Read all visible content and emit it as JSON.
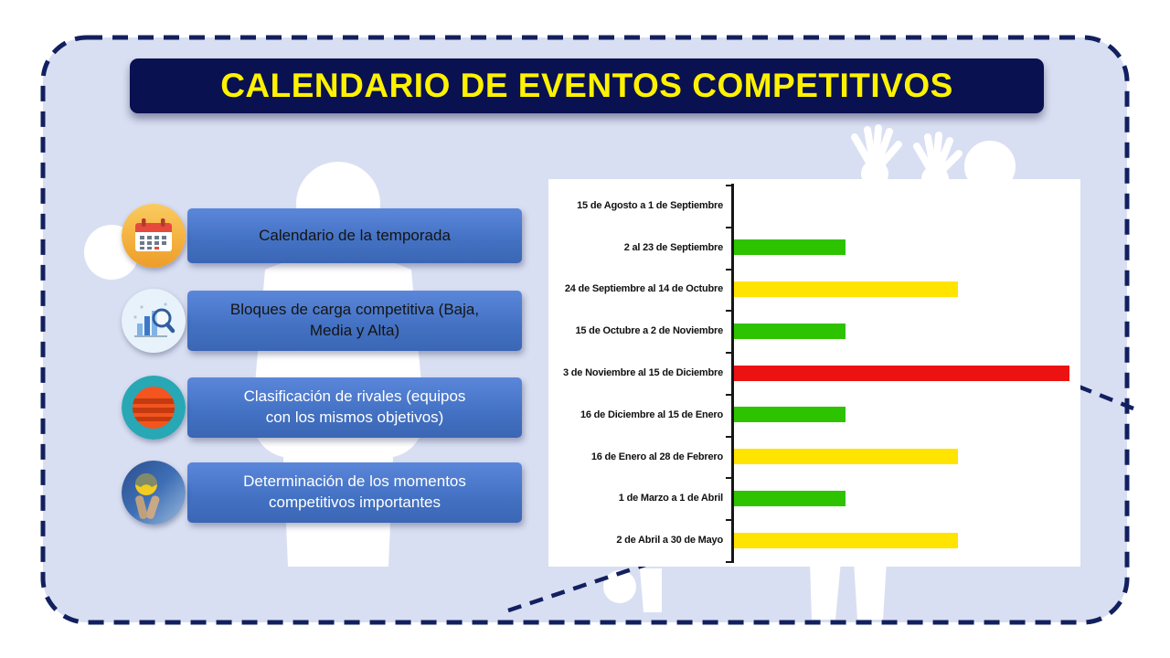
{
  "title": "CALENDARIO DE EVENTOS COMPETITIVOS",
  "items": [
    {
      "label": "Calendario de la temporada",
      "icon": "calendar-icon"
    },
    {
      "label": "Bloques de carga competitiva (Baja, Media y Alta)",
      "icon": "chart-magnifier-icon"
    },
    {
      "label": "Clasificación de rivales (equipos con los mismos objetivos)",
      "icon": "striped-ball-icon"
    },
    {
      "label": "Determinación de los momentos competitivos importantes",
      "icon": "volleyball-photo-icon"
    }
  ],
  "colors": {
    "slide_background": "#D9DFF2",
    "dashed_border": "#12205F",
    "title_background": "#0A1150",
    "title_text": "#FFF200",
    "item_banner_blue": "#4472C4",
    "bar_green": "#2EC300",
    "bar_yellow": "#FFE400",
    "bar_red": "#EC1212"
  },
  "chart_data": {
    "type": "bar",
    "orientation": "horizontal",
    "title": "",
    "xlabel": "",
    "ylabel": "",
    "categories": [
      "15 de Agosto a 1 de Septiembre",
      "2 al 23 de Septiembre",
      "24 de Septiembre al 14 de Octubre",
      "15 de Octubre a 2 de Noviembre",
      "3 de Noviembre al 15 de Diciembre",
      "16 de Diciembre al 15 de Enero",
      "16 de Enero al 28 de Febrero",
      "1 de Marzo a 1 de Abril",
      "2 de Abril a 30 de Mayo"
    ],
    "values": [
      0,
      1,
      2,
      1,
      3,
      1,
      2,
      1,
      2
    ],
    "value_unit": "relative bar length (1=short green, 2=medium yellow, 3=long red)",
    "bar_colors": [
      "none",
      "#2EC300",
      "#FFE400",
      "#2EC300",
      "#EC1212",
      "#2EC300",
      "#FFE400",
      "#2EC300",
      "#FFE400"
    ],
    "xlim": [
      0,
      3.1
    ],
    "grid": false,
    "legend": false
  }
}
